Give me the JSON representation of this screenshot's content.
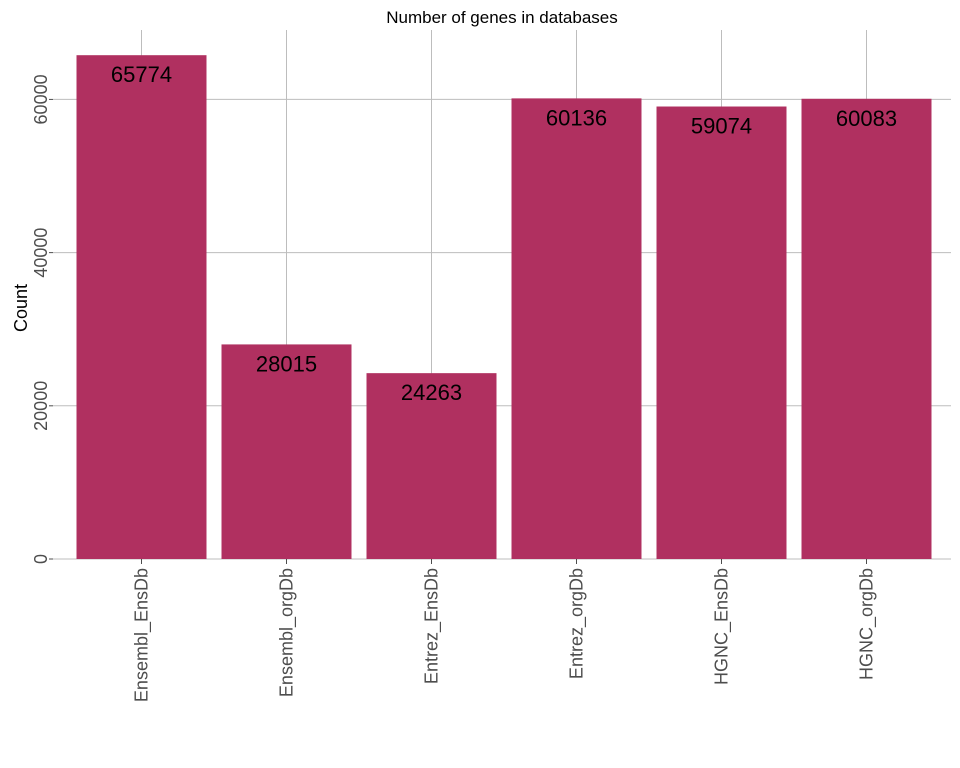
{
  "chart_data": {
    "type": "bar",
    "title": "Number of genes in databases",
    "xlabel": "",
    "ylabel": "Count",
    "categories": [
      "Ensembl_EnsDb",
      "Ensembl_orgDb",
      "Entrez_EnsDb",
      "Entrez_orgDb",
      "HGNC_EnsDb",
      "HGNC_orgDb"
    ],
    "values": [
      65774,
      28015,
      24263,
      60136,
      59074,
      60083
    ],
    "data_labels": [
      "65774",
      "28015",
      "24263",
      "60136",
      "59074",
      "60083"
    ],
    "ylim": [
      0,
      69063
    ],
    "yticks": [
      0,
      20000,
      40000,
      60000
    ],
    "ytick_labels": [
      "0",
      "20000",
      "40000",
      "60000"
    ],
    "bar_color": "#b03060",
    "grid": true,
    "legend": false
  }
}
